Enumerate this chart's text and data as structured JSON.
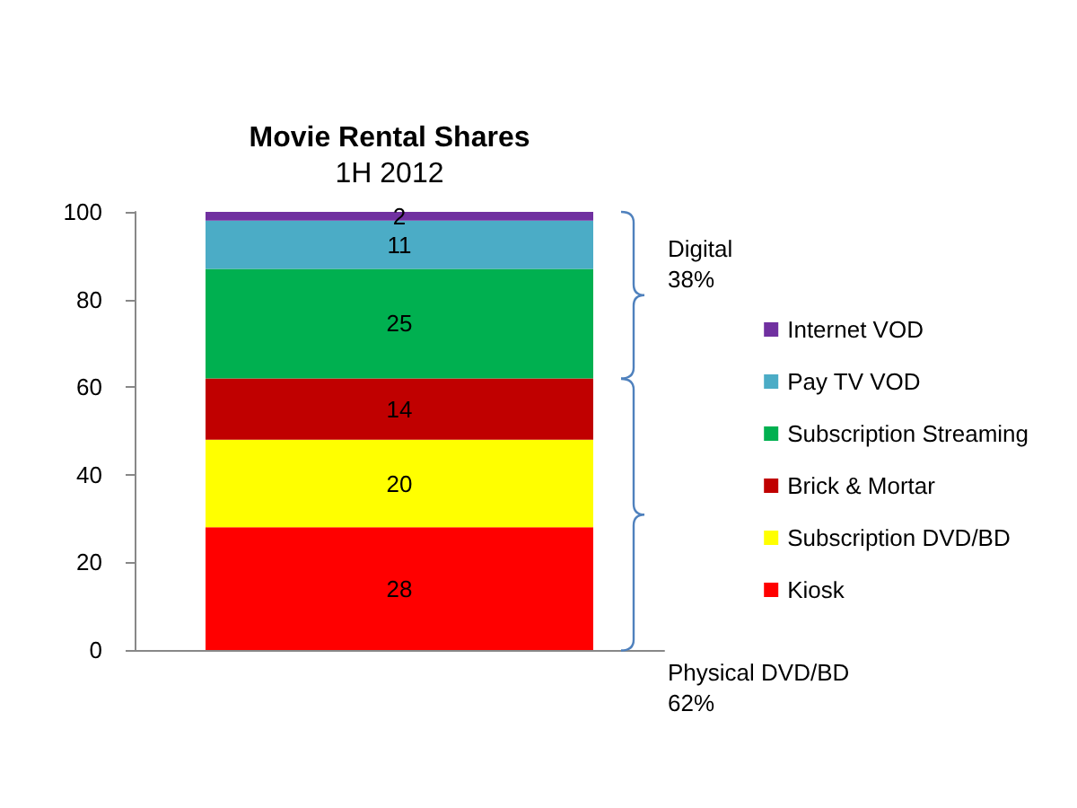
{
  "chart_data": {
    "type": "bar",
    "title": "Movie Rental Shares",
    "subtitle": "1H 2012",
    "categories": [
      null
    ],
    "stacked": true,
    "data_labels": true,
    "legend": "right",
    "grid": false,
    "ylim": [
      0,
      100
    ],
    "yticks": [
      0,
      20,
      40,
      60,
      80,
      100
    ],
    "series": [
      {
        "name": "Kiosk",
        "color": "#ff0000",
        "values": [
          28
        ]
      },
      {
        "name": "Subscription DVD/BD",
        "color": "#ffff00",
        "values": [
          20
        ]
      },
      {
        "name": "Brick & Mortar",
        "color": "#c00000",
        "values": [
          14
        ]
      },
      {
        "name": "Subscription Streaming",
        "color": "#00b050",
        "values": [
          25
        ]
      },
      {
        "name": "Pay TV VOD",
        "color": "#4bacc6",
        "values": [
          11
        ]
      },
      {
        "name": "Internet VOD",
        "color": "#7030a0",
        "values": [
          2
        ]
      }
    ],
    "annotations": [
      "Digital\n38%",
      "Physical DVD/BD\n62%"
    ]
  }
}
